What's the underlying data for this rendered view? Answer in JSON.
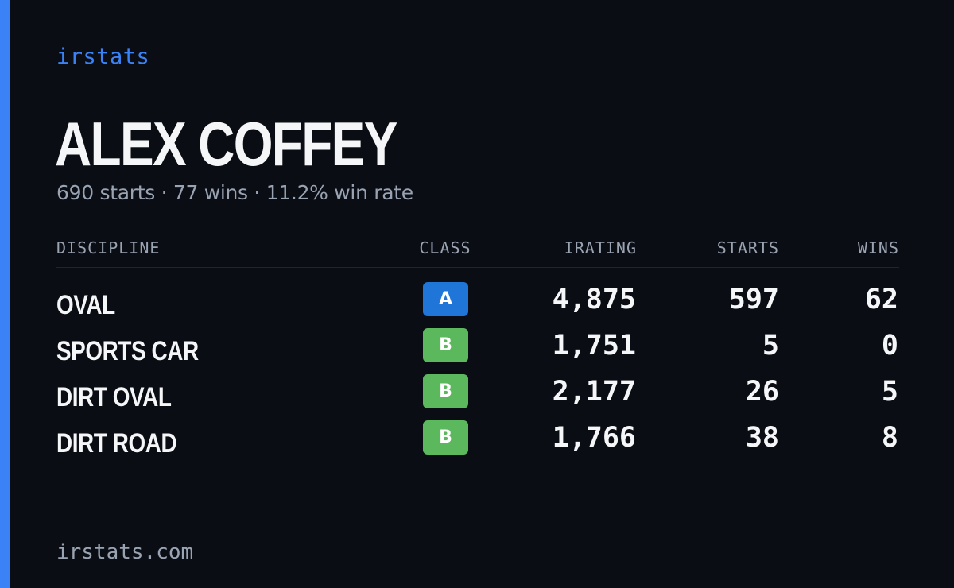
{
  "brand": "irstats",
  "profile": {
    "name": "ALEX COFFEY",
    "summary": "690 starts · 77 wins · 11.2% win rate"
  },
  "table": {
    "headers": {
      "discipline": "DISCIPLINE",
      "class": "CLASS",
      "irating": "IRATING",
      "starts": "STARTS",
      "wins": "WINS"
    },
    "rows": [
      {
        "discipline": "OVAL",
        "class": "A",
        "irating": "4,875",
        "starts": "597",
        "wins": "62"
      },
      {
        "discipline": "SPORTS CAR",
        "class": "B",
        "irating": "1,751",
        "starts": "5",
        "wins": "0"
      },
      {
        "discipline": "DIRT OVAL",
        "class": "B",
        "irating": "2,177",
        "starts": "26",
        "wins": "5"
      },
      {
        "discipline": "DIRT ROAD",
        "class": "B",
        "irating": "1,766",
        "starts": "38",
        "wins": "8"
      }
    ]
  },
  "footer": "irstats.com",
  "colors": {
    "background": "#0a0d14",
    "accent": "#3b82f6",
    "class_a": "#1f76d8",
    "class_b": "#5cb85c",
    "muted_text": "#9aa3b2",
    "primary_text": "#f5f6f8"
  }
}
